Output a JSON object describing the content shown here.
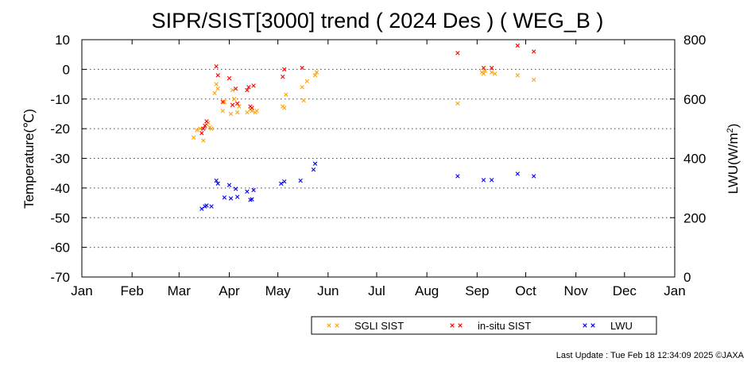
{
  "chart_data": {
    "type": "scatter",
    "title": "SIPR/SIST[3000] trend ( 2024 Des ) ( WEG_B )",
    "ylabel": "Temperature(℃)",
    "y2label": "LWU(W/m²)",
    "ylim": [
      -70,
      10
    ],
    "y2lim": [
      0,
      800
    ],
    "yticks": [
      10,
      0,
      -10,
      -20,
      -30,
      -40,
      -50,
      -60,
      -70
    ],
    "y2ticks": [
      800,
      600,
      400,
      200,
      0
    ],
    "xlim": [
      "2024-01-01",
      "2025-01-01"
    ],
    "xticks": [
      "2024-01-01",
      "2024-02-01",
      "2024-03-01",
      "2024-04-01",
      "2024-05-01",
      "2024-06-01",
      "2024-07-01",
      "2024-08-01",
      "2024-09-01",
      "2024-10-01",
      "2024-11-01",
      "2024-12-01",
      "2025-01-01"
    ],
    "xtick_labels": [
      "Jan",
      "Feb",
      "Mar",
      "Apr",
      "May",
      "Jun",
      "Jul",
      "Aug",
      "Sep",
      "Oct",
      "Nov",
      "Dec",
      "Jan"
    ],
    "grid": "horizontal dotted",
    "legend_position": "bottom",
    "series": [
      {
        "name": "SGLI SIST",
        "color": "#ffa500",
        "axis": "left",
        "points": [
          [
            "2024-03-10",
            -23
          ],
          [
            "2024-03-12",
            -20.5
          ],
          [
            "2024-03-14",
            -20
          ],
          [
            "2024-03-16",
            -24
          ],
          [
            "2024-03-18",
            -18.5
          ],
          [
            "2024-03-19",
            -18
          ],
          [
            "2024-03-20",
            -19.5
          ],
          [
            "2024-03-21",
            -20
          ],
          [
            "2024-03-23",
            -8
          ],
          [
            "2024-03-24",
            -5
          ],
          [
            "2024-03-25",
            -6.5
          ],
          [
            "2024-03-28",
            -14
          ],
          [
            "2024-03-29",
            -11
          ],
          [
            "2024-04-02",
            -15
          ],
          [
            "2024-04-03",
            -7
          ],
          [
            "2024-04-04",
            -10
          ],
          [
            "2024-04-06",
            -14.5
          ],
          [
            "2024-04-07",
            -12.5
          ],
          [
            "2024-04-12",
            -14.5
          ],
          [
            "2024-04-14",
            -13.5
          ],
          [
            "2024-04-15",
            -14
          ],
          [
            "2024-04-17",
            -14.5
          ],
          [
            "2024-04-18",
            -14
          ],
          [
            "2024-05-04",
            -12.5
          ],
          [
            "2024-05-05",
            -13
          ],
          [
            "2024-05-06",
            -8.5
          ],
          [
            "2024-05-16",
            -6
          ],
          [
            "2024-05-17",
            -10.5
          ],
          [
            "2024-05-19",
            -4
          ],
          [
            "2024-05-24",
            -2
          ],
          [
            "2024-05-25",
            -1
          ],
          [
            "2024-08-20",
            -11.5
          ],
          [
            "2024-09-04",
            -1
          ],
          [
            "2024-09-05",
            -1.5
          ],
          [
            "2024-09-06",
            -0.5
          ],
          [
            "2024-09-10",
            -1
          ],
          [
            "2024-09-12",
            -1.5
          ],
          [
            "2024-09-26",
            -2
          ],
          [
            "2024-10-06",
            -3.5
          ]
        ]
      },
      {
        "name": "in-situ SIST",
        "color": "#ff0000",
        "axis": "left",
        "points": [
          [
            "2024-03-15",
            -21.5
          ],
          [
            "2024-03-16",
            -20
          ],
          [
            "2024-03-17",
            -19
          ],
          [
            "2024-03-18",
            -17.5
          ],
          [
            "2024-03-24",
            1
          ],
          [
            "2024-03-25",
            -2
          ],
          [
            "2024-03-28",
            -11
          ],
          [
            "2024-04-01",
            -3
          ],
          [
            "2024-04-03",
            -12
          ],
          [
            "2024-04-05",
            -6.5
          ],
          [
            "2024-04-06",
            -11.5
          ],
          [
            "2024-04-12",
            -7
          ],
          [
            "2024-04-13",
            -6
          ],
          [
            "2024-04-14",
            -12.5
          ],
          [
            "2024-04-15",
            -13
          ],
          [
            "2024-04-16",
            -5.5
          ],
          [
            "2024-05-04",
            -2.5
          ],
          [
            "2024-05-05",
            0
          ],
          [
            "2024-05-16",
            0.5
          ],
          [
            "2024-08-20",
            5.5
          ],
          [
            "2024-09-05",
            0.5
          ],
          [
            "2024-09-10",
            0.5
          ],
          [
            "2024-09-26",
            8
          ],
          [
            "2024-10-06",
            6
          ]
        ]
      },
      {
        "name": "LWU",
        "color": "#0000ff",
        "axis": "right",
        "points": [
          [
            "2024-03-15",
            230
          ],
          [
            "2024-03-17",
            238
          ],
          [
            "2024-03-18",
            241
          ],
          [
            "2024-03-21",
            238
          ],
          [
            "2024-03-24",
            325
          ],
          [
            "2024-03-25",
            315
          ],
          [
            "2024-03-29",
            268
          ],
          [
            "2024-04-01",
            310
          ],
          [
            "2024-04-02",
            265
          ],
          [
            "2024-04-05",
            297
          ],
          [
            "2024-04-06",
            270
          ],
          [
            "2024-04-12",
            288
          ],
          [
            "2024-04-14",
            260
          ],
          [
            "2024-04-15",
            262
          ],
          [
            "2024-04-16",
            293
          ],
          [
            "2024-05-03",
            315
          ],
          [
            "2024-05-05",
            322
          ],
          [
            "2024-05-15",
            325
          ],
          [
            "2024-05-23",
            362
          ],
          [
            "2024-05-24",
            382
          ],
          [
            "2024-08-20",
            340
          ],
          [
            "2024-09-05",
            327
          ],
          [
            "2024-09-10",
            327
          ],
          [
            "2024-09-26",
            348
          ],
          [
            "2024-10-06",
            340
          ]
        ]
      }
    ]
  },
  "footer": {
    "last_update": "Last Update : Tue Feb 18 12:34:09 2025  ©JAXA"
  }
}
